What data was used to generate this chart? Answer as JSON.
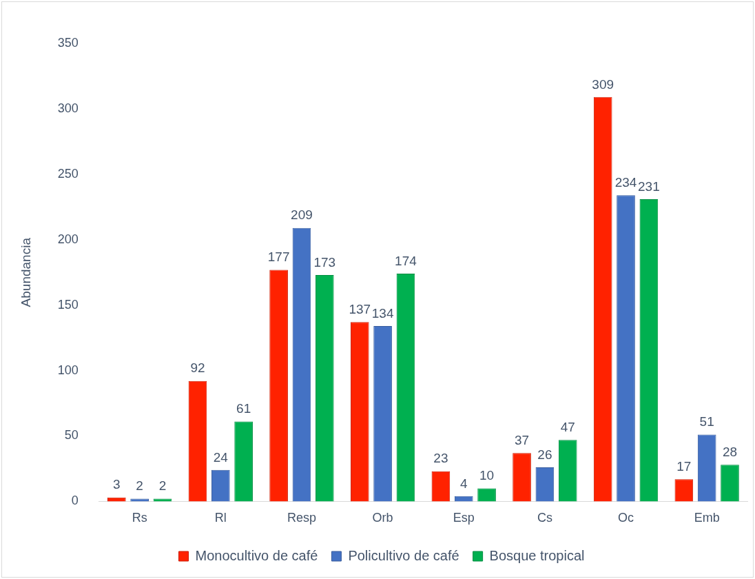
{
  "chart_data": {
    "type": "bar",
    "ylabel": "Abundancia",
    "categories": [
      "Rs",
      "Rl",
      "Resp",
      "Orb",
      "Esp",
      "Cs",
      "Oc",
      "Emb"
    ],
    "series": [
      {
        "name": "Monocultivo de café",
        "color": "#ff2200",
        "values": [
          3,
          92,
          177,
          137,
          23,
          37,
          309,
          17
        ]
      },
      {
        "name": "Policultivo de café",
        "color": "#4472c4",
        "values": [
          2,
          24,
          209,
          134,
          4,
          26,
          234,
          51
        ]
      },
      {
        "name": "Bosque tropical",
        "color": "#00b050",
        "values": [
          2,
          61,
          173,
          174,
          10,
          47,
          231,
          28
        ]
      }
    ],
    "ylim": [
      0,
      350
    ],
    "yticks": [
      0,
      50,
      100,
      150,
      200,
      250,
      300,
      350
    ],
    "grid": false,
    "legend": "bottom",
    "data_labels": true
  }
}
